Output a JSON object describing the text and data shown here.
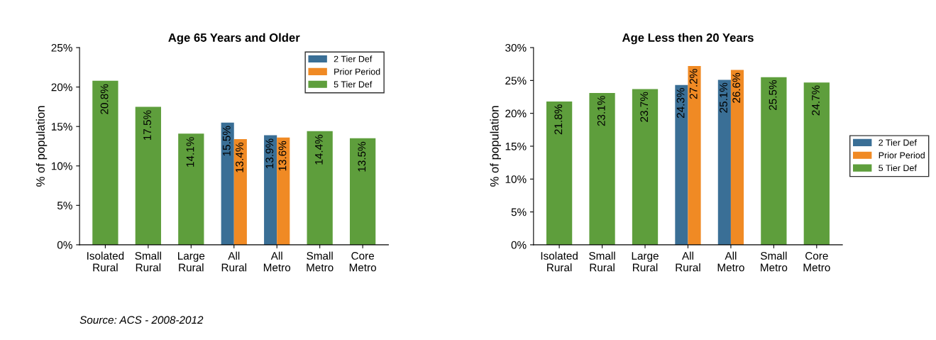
{
  "chart_data": [
    {
      "type": "bar",
      "title": "Age 65 Years and Older",
      "ylabel": "% of population",
      "categories": [
        "Isolated\nRural",
        "Small\nRural",
        "Large\nRural",
        "All\nRural",
        "All\nMetro",
        "Small\nMetro",
        "Core\nMetro"
      ],
      "series": [
        {
          "name": "2 Tier Def",
          "color": "#3a6f96",
          "values": [
            null,
            null,
            null,
            15.5,
            13.9,
            null,
            null
          ],
          "value_labels": [
            null,
            null,
            null,
            "15.5%",
            "13.9%",
            null,
            null
          ]
        },
        {
          "name": "Prior Period",
          "color": "#f08a24",
          "values": [
            null,
            null,
            null,
            13.4,
            13.6,
            null,
            null
          ],
          "value_labels": [
            null,
            null,
            null,
            "13.4%",
            "13.6%",
            null,
            null
          ]
        },
        {
          "name": "5 Tier Def",
          "color": "#5e9e3c",
          "values": [
            20.8,
            17.5,
            14.1,
            null,
            null,
            14.4,
            13.5
          ],
          "value_labels": [
            "20.8%",
            "17.5%",
            "14.1%",
            null,
            null,
            "14.4%",
            "13.5%"
          ]
        }
      ],
      "ylim": [
        0,
        25
      ],
      "yticks": [
        {
          "value": 0,
          "label": "0%"
        },
        {
          "value": 5,
          "label": "5%"
        },
        {
          "value": 10,
          "label": "10%"
        },
        {
          "value": 15,
          "label": "15%"
        },
        {
          "value": 20,
          "label": "20%"
        },
        {
          "value": 25,
          "label": "25%"
        }
      ],
      "legend": "top right",
      "grid": false,
      "annotations": [
        "Source: ACS - 2008-2012"
      ]
    },
    {
      "type": "bar",
      "title": "Age Less then 20 Years",
      "ylabel": "% of population",
      "categories": [
        "Isolated\nRural",
        "Small\nRural",
        "Large\nRural",
        "All\nRural",
        "All\nMetro",
        "Small\nMetro",
        "Core\nMetro"
      ],
      "series": [
        {
          "name": "2 Tier Def",
          "color": "#3a6f96",
          "values": [
            null,
            null,
            null,
            24.3,
            25.1,
            null,
            null
          ],
          "value_labels": [
            null,
            null,
            null,
            "24.3%",
            "25.1%",
            null,
            null
          ]
        },
        {
          "name": "Prior Period",
          "color": "#f08a24",
          "values": [
            null,
            null,
            null,
            27.2,
            26.6,
            null,
            null
          ],
          "value_labels": [
            null,
            null,
            null,
            "27.2%",
            "26.6%",
            null,
            null
          ]
        },
        {
          "name": "5 Tier Def",
          "color": "#5e9e3c",
          "values": [
            21.8,
            23.1,
            23.7,
            null,
            null,
            25.5,
            24.7
          ],
          "value_labels": [
            "21.8%",
            "23.1%",
            "23.7%",
            null,
            null,
            "25.5%",
            "24.7%"
          ]
        }
      ],
      "ylim": [
        0,
        30
      ],
      "yticks": [
        {
          "value": 0,
          "label": "0%"
        },
        {
          "value": 5,
          "label": "5%"
        },
        {
          "value": 10,
          "label": "10%"
        },
        {
          "value": 15,
          "label": "15%"
        },
        {
          "value": 20,
          "label": "20%"
        },
        {
          "value": 25,
          "label": "25%"
        },
        {
          "value": 30,
          "label": "30%"
        }
      ],
      "legend": "right",
      "grid": false
    }
  ]
}
